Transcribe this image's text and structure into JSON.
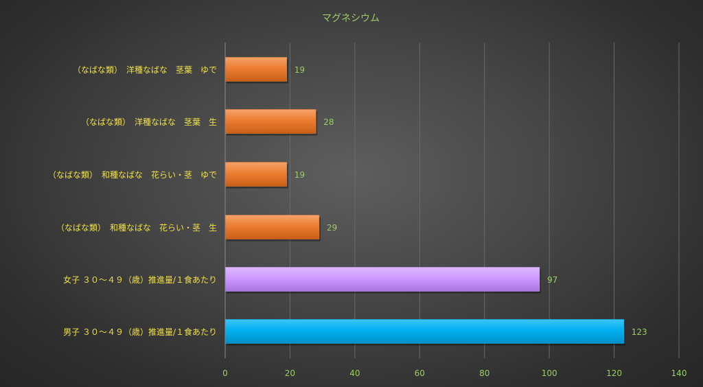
{
  "chart_data": {
    "type": "bar",
    "orientation": "horizontal",
    "title": "マグネシウム",
    "categories": [
      "（なばな類）　洋種なばな　茎葉　ゆで",
      "（なばな類）　洋種なばな　茎葉　生",
      "（なばな類）　和種なばな　花らい・茎　ゆで",
      "（なばな類）　和種なばな　花らい・茎　生",
      "女子 ３０～４９（歳）推進量/１食あたり",
      "男子 ３０～４９（歳）推進量/１食あたり"
    ],
    "values": [
      19,
      28,
      19,
      29,
      97,
      123
    ],
    "data_labels": [
      "19",
      "28",
      "19",
      "29",
      "97",
      "123"
    ],
    "colors": [
      "#ed7d31",
      "#ed7d31",
      "#ed7d31",
      "#ed7d31",
      "#cc99ff",
      "#00b0f0"
    ],
    "xlim": [
      0,
      140
    ],
    "xticks": [
      0,
      20,
      40,
      60,
      80,
      100,
      120,
      140
    ],
    "xtick_labels": [
      "0",
      "20",
      "40",
      "60",
      "80",
      "100",
      "120",
      "140"
    ],
    "grid": "vertical",
    "legend": "none",
    "xlabel": "",
    "ylabel": ""
  }
}
